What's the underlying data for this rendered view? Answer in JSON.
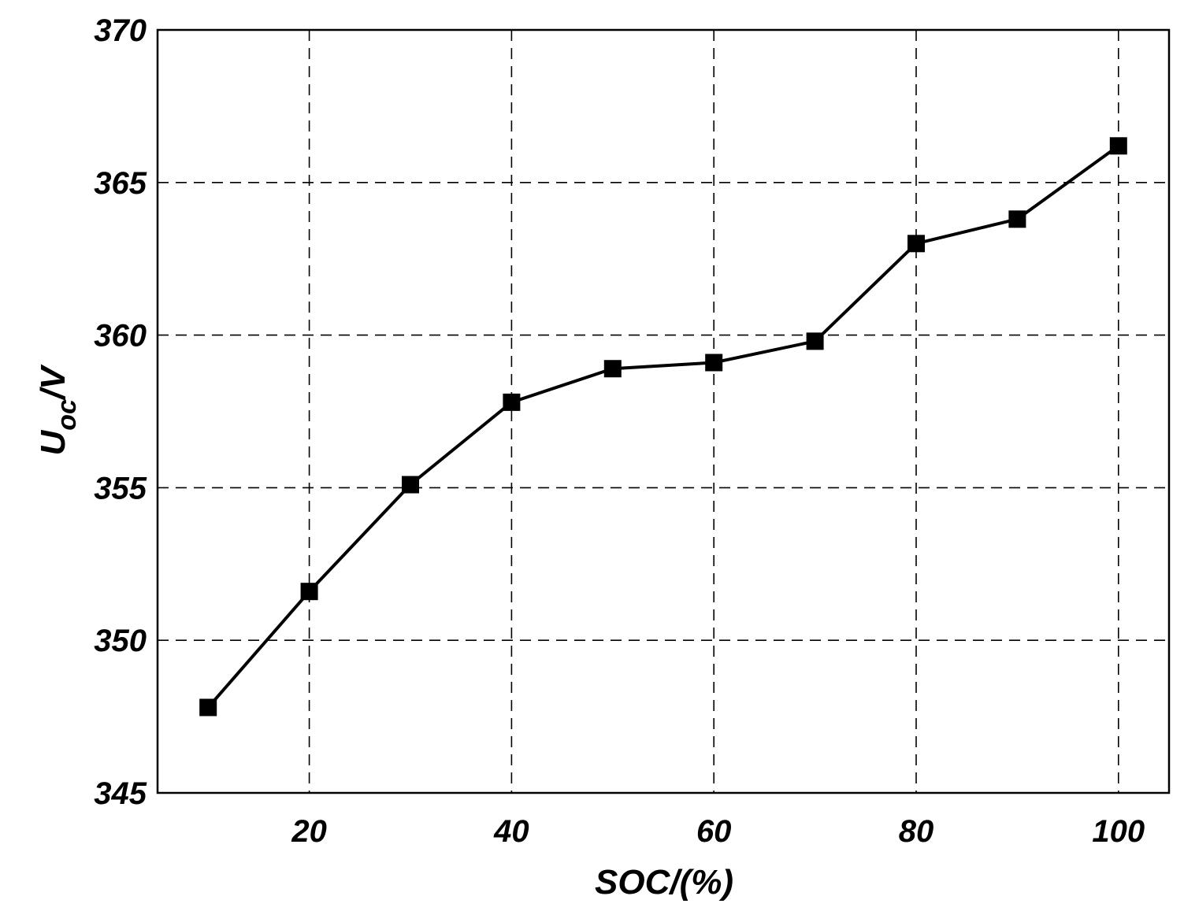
{
  "chart_data": {
    "type": "line",
    "title": "",
    "xlabel": "SOC/(%)",
    "ylabel": {
      "main": "U",
      "sub": "oc",
      "suffix": "/V"
    },
    "xlim": [
      5,
      105
    ],
    "ylim": [
      345,
      370
    ],
    "xticks": [
      20,
      40,
      60,
      80,
      100
    ],
    "yticks": [
      345,
      350,
      355,
      360,
      365,
      370
    ],
    "grid": true,
    "line_color": "#000000",
    "marker": "square",
    "series": [
      {
        "x": [
          10,
          20,
          30,
          40,
          50,
          60,
          70,
          80,
          90,
          100
        ],
        "y": [
          347.8,
          351.6,
          355.1,
          357.8,
          358.9,
          359.1,
          359.8,
          363.0,
          363.8,
          366.2
        ]
      }
    ]
  }
}
